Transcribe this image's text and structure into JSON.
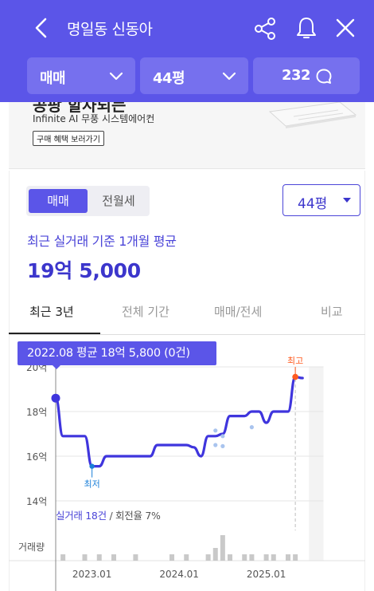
{
  "header": {
    "title": "명일동 신동아",
    "type_select": "매매",
    "size_select": "44평",
    "comment_count": "232"
  },
  "ad": {
    "headline": "공팡 할사되는",
    "subtitle": "Infinite AI 무풍 시스템에어컨",
    "button": "구매 혜택 보러가기"
  },
  "deal_toggle": {
    "sale": "매매",
    "jeonse": "전월세"
  },
  "area_select": "44평",
  "summary": {
    "basis": "최근 실거래 기준 1개월 평균",
    "price": "19억 5,000"
  },
  "period_tabs": [
    "최근 3년",
    "전체 기간",
    "매매/전세",
    "비교"
  ],
  "tooltip": "2022.08 평균 18억 5,800 (0건)",
  "trade_info": {
    "count": "실거래 18건",
    "rest": " / 회전율 7%"
  },
  "colors": {
    "primary": "#5b55e8",
    "line": "#3f35dd",
    "high": "#ff5a1f",
    "low": "#1a7fd8"
  },
  "chart_data": {
    "type": "line",
    "y_ticks": [
      "20억",
      "18억",
      "16억",
      "14억"
    ],
    "ylim": [
      14,
      20
    ],
    "x_ticks": [
      "2023.01",
      "2024.01",
      "2025.01"
    ],
    "x_range": [
      "2022.08",
      "2025.08"
    ],
    "max_label": "최고",
    "min_label": "최저",
    "volume_label": "거래량",
    "series": [
      {
        "x": [
          "2022.08",
          "2022.09",
          "2022.10",
          "2022.11",
          "2022.12",
          "2023.01",
          "2023.02",
          "2023.03",
          "2023.04",
          "2023.05",
          "2023.06",
          "2023.07",
          "2023.08",
          "2023.09",
          "2023.10",
          "2023.11",
          "2023.12",
          "2024.01",
          "2024.02",
          "2024.03",
          "2024.04",
          "2024.05",
          "2024.06",
          "2024.07",
          "2024.08",
          "2024.09",
          "2024.10",
          "2024.11",
          "2024.12",
          "2025.01",
          "2025.02",
          "2025.03",
          "2025.04",
          "2025.05",
          "2025.06"
        ],
        "values": [
          18.6,
          16.9,
          16.9,
          16.9,
          16.9,
          15.55,
          15.55,
          16.0,
          16.0,
          16.0,
          16.0,
          16.0,
          16.0,
          16.0,
          16.5,
          16.5,
          16.5,
          16.5,
          16.5,
          16.4,
          16.0,
          16.9,
          16.9,
          17.0,
          17.8,
          17.8,
          17.8,
          18.0,
          18.0,
          17.5,
          18.0,
          18.0,
          18.0,
          19.55,
          19.5
        ]
      }
    ],
    "scatter_points": [
      {
        "x": "2024.06",
        "value": 17.15
      },
      {
        "x": "2024.06",
        "value": 16.5
      },
      {
        "x": "2024.07",
        "value": 16.9
      },
      {
        "x": "2024.07",
        "value": 16.45
      },
      {
        "x": "2024.11",
        "value": 17.3
      }
    ],
    "volume": [
      {
        "x": "2022.09",
        "value": 1
      },
      {
        "x": "2022.12",
        "value": 1
      },
      {
        "x": "2023.02",
        "value": 1
      },
      {
        "x": "2023.04",
        "value": 1
      },
      {
        "x": "2023.07",
        "value": 1
      },
      {
        "x": "2023.12",
        "value": 1
      },
      {
        "x": "2024.02",
        "value": 1
      },
      {
        "x": "2024.05",
        "value": 1
      },
      {
        "x": "2024.06",
        "value": 2
      },
      {
        "x": "2024.07",
        "value": 4
      },
      {
        "x": "2024.08",
        "value": 1
      },
      {
        "x": "2024.10",
        "value": 1
      },
      {
        "x": "2024.11",
        "value": 1
      },
      {
        "x": "2025.01",
        "value": 1
      },
      {
        "x": "2025.02",
        "value": 1
      },
      {
        "x": "2025.04",
        "value": 1
      },
      {
        "x": "2025.05",
        "value": 1
      }
    ]
  }
}
